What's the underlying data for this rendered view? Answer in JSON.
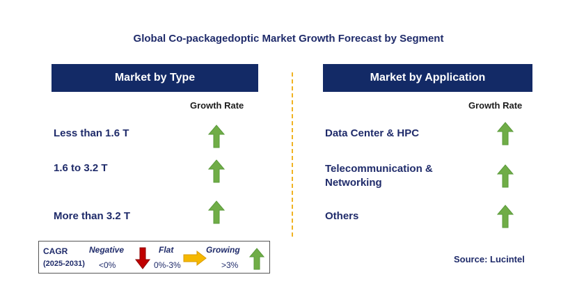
{
  "title": "Global Co-packagedoptic Market Growth Forecast by Segment",
  "left_panel": {
    "header": "Market by Type",
    "growth_label": "Growth Rate",
    "rows": [
      {
        "label": "Less than 1.6 T",
        "trend": "growing"
      },
      {
        "label": "1.6 to 3.2 T",
        "trend": "growing"
      },
      {
        "label": "More than 3.2 T",
        "trend": "growing"
      }
    ]
  },
  "right_panel": {
    "header": "Market by Application",
    "growth_label": "Growth Rate",
    "rows": [
      {
        "label": "Data Center & HPC",
        "trend": "growing"
      },
      {
        "label_line1": "Telecommunication &",
        "label_line2": "Networking",
        "trend": "growing"
      },
      {
        "label": "Others",
        "trend": "growing"
      }
    ]
  },
  "legend": {
    "cagr": "CAGR",
    "period": "(2025-2031)",
    "negative": {
      "label": "Negative",
      "range": "<0%",
      "color": "#c00000",
      "icon": "arrow-down-icon"
    },
    "flat": {
      "label": "Flat",
      "range": "0%-3%",
      "color": "#f5b800",
      "icon": "arrow-right-icon"
    },
    "growing": {
      "label": "Growing",
      "range": ">3%",
      "color": "#70ad47",
      "icon": "arrow-up-icon"
    }
  },
  "source": "Source: Lucintel",
  "colors": {
    "header_bg": "#132a66",
    "text_navy": "#1f2b6a",
    "divider": "#f0b323",
    "growth_arrow": "#70ad47"
  }
}
